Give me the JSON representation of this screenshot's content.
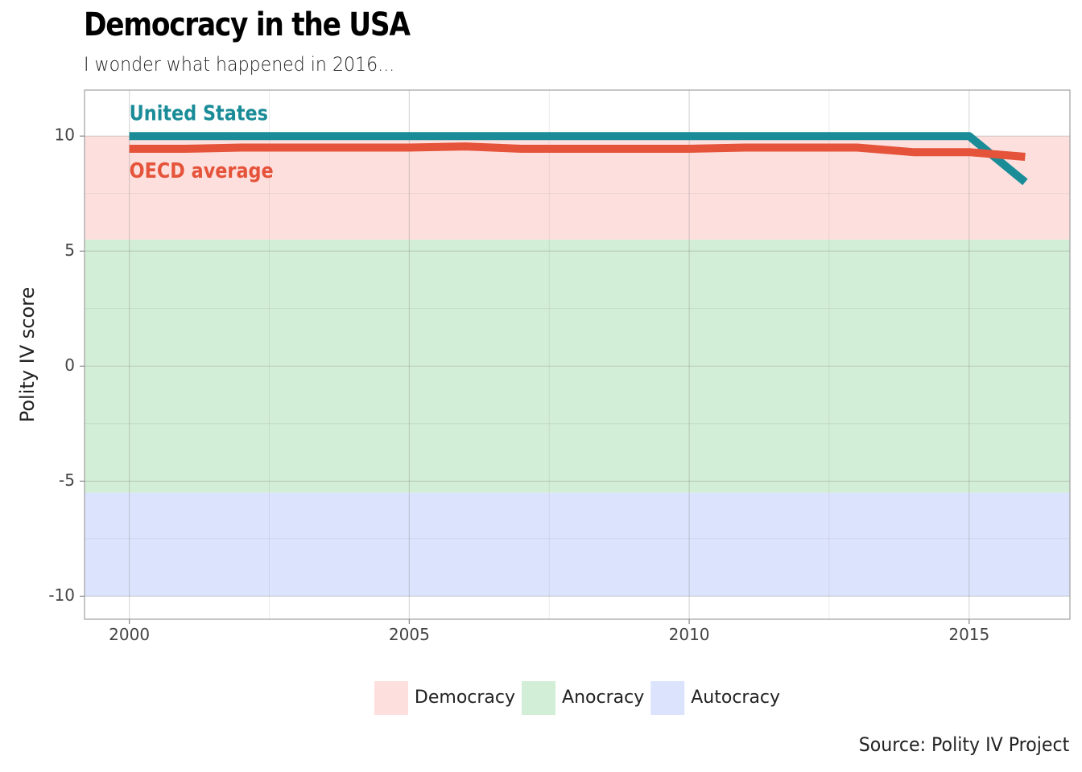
{
  "title": "Democracy in the USA",
  "subtitle": "I wonder what happened in 2016...",
  "caption": "Source: Polity IV Project",
  "chart_data": {
    "type": "line",
    "title": "Democracy in the USA",
    "subtitle": "I wonder what happened in 2016...",
    "xlabel": "",
    "ylabel": "Polity IV score",
    "xlim": [
      1999.2,
      2016.8
    ],
    "ylim": [
      -11,
      12
    ],
    "x_ticks": [
      2000,
      2005,
      2010,
      2015
    ],
    "y_ticks": [
      10,
      5,
      0,
      -5,
      -10
    ],
    "y_tick_labels": [
      "10",
      "5",
      "0",
      "-5",
      "-10"
    ],
    "grid": true,
    "legend_position": "bottom",
    "bands": [
      {
        "name": "Democracy",
        "from": 5.5,
        "to": 10,
        "color": "#fde0de"
      },
      {
        "name": "Anocracy",
        "from": -5.5,
        "to": 5.5,
        "color": "#d3eed6"
      },
      {
        "name": "Autocracy",
        "from": -10,
        "to": -5.5,
        "color": "#dce4fd"
      }
    ],
    "series": [
      {
        "name": "United States",
        "color": "#1a8c98",
        "x": [
          2000,
          2001,
          2002,
          2003,
          2004,
          2005,
          2006,
          2007,
          2008,
          2009,
          2010,
          2011,
          2012,
          2013,
          2014,
          2015,
          2016
        ],
        "values": [
          10,
          10,
          10,
          10,
          10,
          10,
          10,
          10,
          10,
          10,
          10,
          10,
          10,
          10,
          10,
          10,
          8
        ]
      },
      {
        "name": "OECD average",
        "color": "#e5533a",
        "x": [
          2000,
          2001,
          2002,
          2003,
          2004,
          2005,
          2006,
          2007,
          2008,
          2009,
          2010,
          2011,
          2012,
          2013,
          2014,
          2015,
          2016
        ],
        "values": [
          9.45,
          9.45,
          9.5,
          9.5,
          9.5,
          9.5,
          9.55,
          9.45,
          9.45,
          9.45,
          9.45,
          9.5,
          9.5,
          9.5,
          9.3,
          9.3,
          9.1
        ]
      }
    ],
    "annotations": [
      {
        "text": "United States",
        "x": 2000,
        "y": 10.95,
        "color": "#1a8c98"
      },
      {
        "text": "OECD average",
        "x": 2000,
        "y": 8.45,
        "color": "#e5533a"
      }
    ]
  }
}
